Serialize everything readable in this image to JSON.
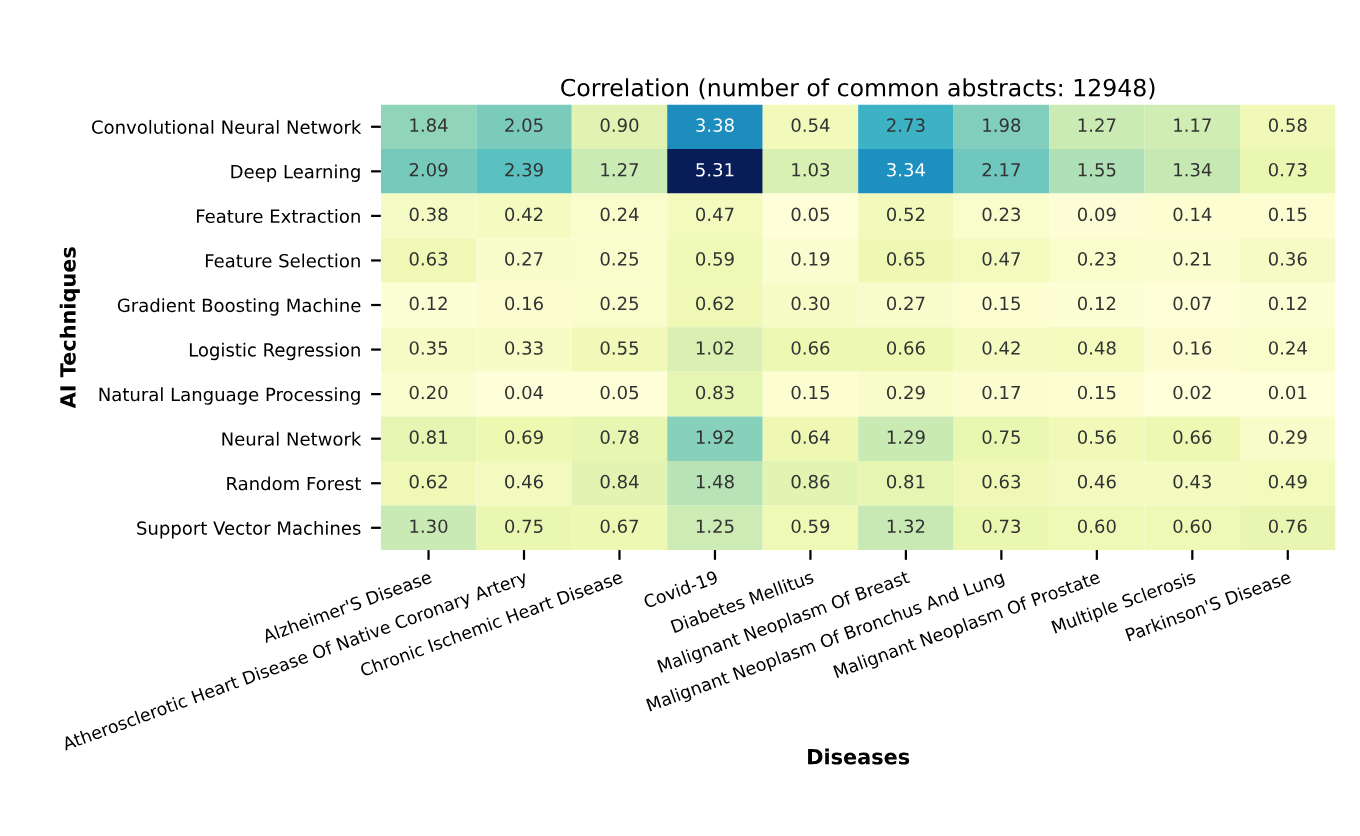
{
  "chart_data": {
    "type": "heatmap",
    "title": "Correlation (number of common abstracts: 12948)",
    "xlabel": "Diseases",
    "ylabel": "AI Techniques",
    "categories": [
      "Alzheimer'S Disease",
      "Atherosclerotic Heart Disease Of Native Coronary Artery",
      "Chronic Ischemic Heart Disease",
      "Covid-19",
      "Diabetes Mellitus",
      "Malignant Neoplasm Of Breast",
      "Malignant Neoplasm Of Bronchus And Lung",
      "Malignant Neoplasm Of Prostate",
      "Multiple Sclerosis",
      "Parkinson'S Disease"
    ],
    "y_categories": [
      "Convolutional Neural Network",
      "Deep Learning",
      "Feature Extraction",
      "Feature Selection",
      "Gradient Boosting Machine",
      "Logistic Regression",
      "Natural Language Processing",
      "Neural Network",
      "Random Forest",
      "Support Vector Machines"
    ],
    "cells": [
      [
        1.84,
        2.05,
        0.9,
        3.38,
        0.54,
        2.73,
        1.98,
        1.27,
        1.17,
        0.58
      ],
      [
        2.09,
        2.39,
        1.27,
        5.31,
        1.03,
        3.34,
        2.17,
        1.55,
        1.34,
        0.73
      ],
      [
        0.38,
        0.42,
        0.24,
        0.47,
        0.05,
        0.52,
        0.23,
        0.09,
        0.14,
        0.15
      ],
      [
        0.63,
        0.27,
        0.25,
        0.59,
        0.19,
        0.65,
        0.47,
        0.23,
        0.21,
        0.36
      ],
      [
        0.12,
        0.16,
        0.25,
        0.62,
        0.3,
        0.27,
        0.15,
        0.12,
        0.07,
        0.12
      ],
      [
        0.35,
        0.33,
        0.55,
        1.02,
        0.66,
        0.66,
        0.42,
        0.48,
        0.16,
        0.24
      ],
      [
        0.2,
        0.04,
        0.05,
        0.83,
        0.15,
        0.29,
        0.17,
        0.15,
        0.02,
        0.01
      ],
      [
        0.81,
        0.69,
        0.78,
        1.92,
        0.64,
        1.29,
        0.75,
        0.56,
        0.66,
        0.29
      ],
      [
        0.62,
        0.46,
        0.84,
        1.48,
        0.86,
        0.81,
        0.63,
        0.46,
        0.43,
        0.49
      ],
      [
        1.3,
        0.75,
        0.67,
        1.25,
        0.59,
        1.32,
        0.73,
        0.6,
        0.6,
        0.76
      ]
    ],
    "cell_labels": [
      [
        "1.84",
        "2.05",
        "0.90",
        "3.38",
        "0.54",
        "2.73",
        "1.98",
        "1.27",
        "1.17",
        "0.58"
      ],
      [
        "2.09",
        "2.39",
        "1.27",
        "5.31",
        "1.03",
        "3.34",
        "2.17",
        "1.55",
        "1.34",
        "0.73"
      ],
      [
        "0.38",
        "0.42",
        "0.24",
        "0.47",
        "0.05",
        "0.52",
        "0.23",
        "0.09",
        "0.14",
        "0.15"
      ],
      [
        "0.63",
        "0.27",
        "0.25",
        "0.59",
        "0.19",
        "0.65",
        "0.47",
        "0.23",
        "0.21",
        "0.36"
      ],
      [
        "0.12",
        "0.16",
        "0.25",
        "0.62",
        "0.30",
        "0.27",
        "0.15",
        "0.12",
        "0.07",
        "0.12"
      ],
      [
        "0.35",
        "0.33",
        "0.55",
        "1.02",
        "0.66",
        "0.66",
        "0.42",
        "0.48",
        "0.16",
        "0.24"
      ],
      [
        "0.20",
        "0.04",
        "0.05",
        "0.83",
        "0.15",
        "0.29",
        "0.17",
        "0.15",
        "0.02",
        "0.01"
      ],
      [
        "0.81",
        "0.69",
        "0.78",
        "1.92",
        "0.64",
        "1.29",
        "0.75",
        "0.56",
        "0.66",
        "0.29"
      ],
      [
        "0.62",
        "0.46",
        "0.84",
        "1.48",
        "0.86",
        "0.81",
        "0.63",
        "0.46",
        "0.43",
        "0.49"
      ],
      [
        "1.30",
        "0.75",
        "0.67",
        "1.25",
        "0.59",
        "1.32",
        "0.73",
        "0.60",
        "0.60",
        "0.76"
      ]
    ]
  }
}
